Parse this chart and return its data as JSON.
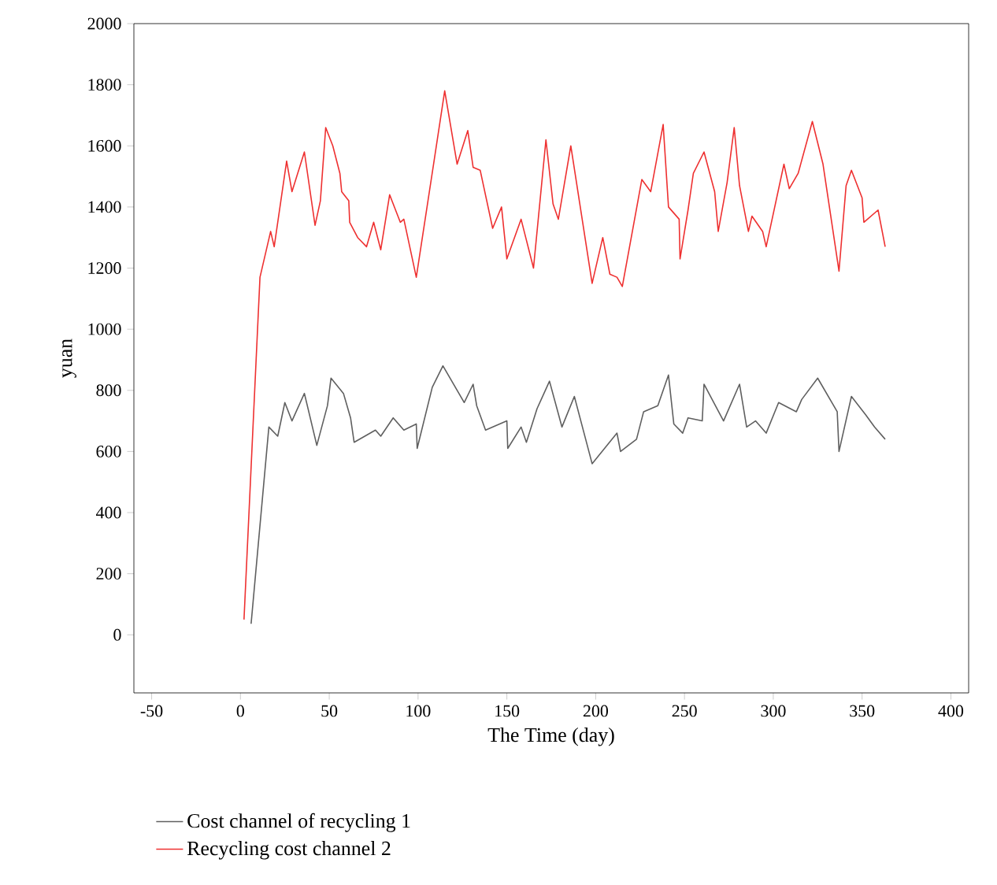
{
  "chart_data": {
    "type": "line",
    "xlabel": "The Time (day)",
    "ylabel": "yuan",
    "xlim": [
      -60,
      410
    ],
    "ylim": [
      -190,
      2000
    ],
    "xticks": [
      -50,
      0,
      50,
      100,
      150,
      200,
      250,
      300,
      350,
      400
    ],
    "yticks": [
      0,
      200,
      400,
      600,
      800,
      1000,
      1200,
      1400,
      1600,
      1800,
      2000
    ],
    "grid": false,
    "legend": "bottom",
    "series": [
      {
        "name": "Cost channel of recycling 1",
        "color": "#5f5f5f",
        "x": [
          6,
          16,
          21,
          25,
          29,
          36,
          43,
          49,
          51,
          58,
          62,
          64,
          76,
          79,
          86,
          92,
          99,
          99.5,
          108,
          114,
          126,
          131,
          133,
          138,
          150,
          150.5,
          158,
          161,
          167,
          174,
          181,
          188,
          198,
          212,
          214,
          223,
          227,
          235,
          241,
          244,
          249,
          252,
          260,
          261,
          272,
          281,
          285,
          290,
          296,
          303,
          313,
          316,
          325,
          336,
          337,
          344,
          352,
          357,
          363
        ],
        "values": [
          36,
          680,
          650,
          760,
          700,
          790,
          620,
          750,
          840,
          790,
          710,
          630,
          670,
          650,
          710,
          670,
          690,
          610,
          810,
          880,
          760,
          820,
          750,
          670,
          700,
          610,
          680,
          630,
          740,
          830,
          680,
          780,
          560,
          660,
          600,
          640,
          730,
          750,
          850,
          690,
          660,
          710,
          700,
          820,
          700,
          820,
          680,
          700,
          660,
          760,
          730,
          770,
          840,
          730,
          600,
          780,
          720,
          680,
          640
        ]
      },
      {
        "name": "Recycling cost channel 2",
        "color": "#ee3030",
        "x": [
          2,
          11,
          17,
          19,
          26,
          29,
          36,
          42,
          45,
          48,
          52,
          56,
          57,
          61,
          61.5,
          66,
          71,
          75,
          79,
          84,
          90,
          92,
          99,
          109,
          115,
          122,
          128,
          131,
          135,
          142,
          147,
          150,
          158,
          165,
          172,
          176,
          179,
          186,
          198,
          204,
          208,
          212,
          215,
          226,
          231,
          238,
          241,
          247,
          247.5,
          252,
          255,
          261,
          267,
          269,
          274,
          278,
          281,
          286,
          288,
          294,
          296,
          306,
          309,
          314,
          322,
          328,
          337,
          341,
          344,
          350,
          351,
          359,
          363
        ],
        "values": [
          50,
          1170,
          1320,
          1270,
          1550,
          1450,
          1580,
          1340,
          1420,
          1660,
          1600,
          1510,
          1450,
          1420,
          1350,
          1300,
          1270,
          1350,
          1260,
          1440,
          1350,
          1360,
          1170,
          1550,
          1780,
          1540,
          1650,
          1530,
          1520,
          1330,
          1400,
          1230,
          1360,
          1200,
          1620,
          1410,
          1360,
          1600,
          1150,
          1300,
          1180,
          1170,
          1140,
          1490,
          1450,
          1670,
          1400,
          1360,
          1230,
          1390,
          1510,
          1580,
          1450,
          1320,
          1480,
          1660,
          1470,
          1320,
          1370,
          1320,
          1270,
          1540,
          1460,
          1510,
          1680,
          1540,
          1190,
          1470,
          1520,
          1430,
          1350,
          1390,
          1270
        ]
      }
    ]
  }
}
